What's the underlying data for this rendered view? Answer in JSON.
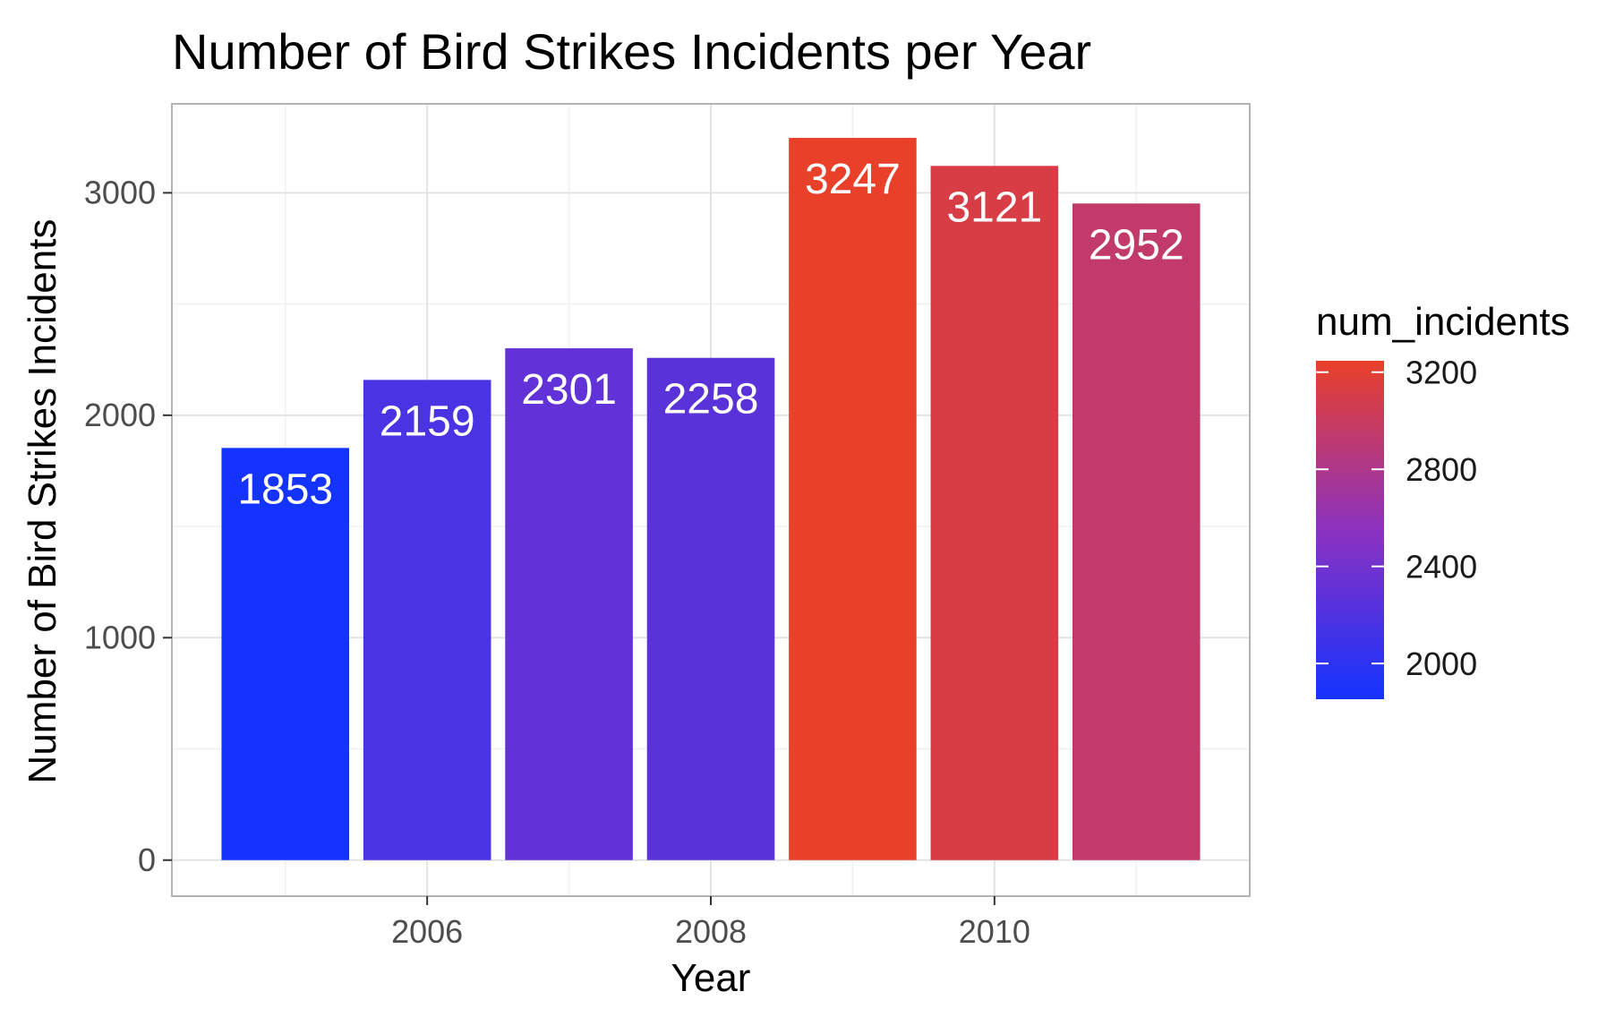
{
  "chart_data": {
    "type": "bar",
    "title": "Number of Bird Strikes Incidents per Year",
    "xlabel": "Year",
    "ylabel": "Number of Bird Strikes Incidents",
    "categories": [
      2005,
      2006,
      2007,
      2008,
      2009,
      2010,
      2011
    ],
    "values": [
      1853,
      2159,
      2301,
      2258,
      3247,
      3121,
      2952
    ],
    "data_labels": [
      "1853",
      "2159",
      "2301",
      "2258",
      "3247",
      "3121",
      "2952"
    ],
    "x_ticks": [
      2006,
      2008,
      2010
    ],
    "x_tick_labels": [
      "2006",
      "2008",
      "2010"
    ],
    "y_ticks": [
      0,
      1000,
      2000,
      3000
    ],
    "y_tick_labels": [
      "0",
      "1000",
      "2000",
      "3000"
    ],
    "xlim": [
      2004.2,
      2011.8
    ],
    "ylim": [
      -162,
      3400
    ],
    "grid": true,
    "fill_scale": {
      "title": "num_incidents",
      "low_color": "#1433ff",
      "mid_color": "#8c32c0",
      "high_color": "#e9402a",
      "range": [
        1853,
        3247
      ],
      "breaks": [
        2000,
        2400,
        2800,
        3200
      ],
      "break_labels": [
        "2000",
        "2400",
        "2800",
        "3200"
      ]
    },
    "legend_position": "right"
  }
}
